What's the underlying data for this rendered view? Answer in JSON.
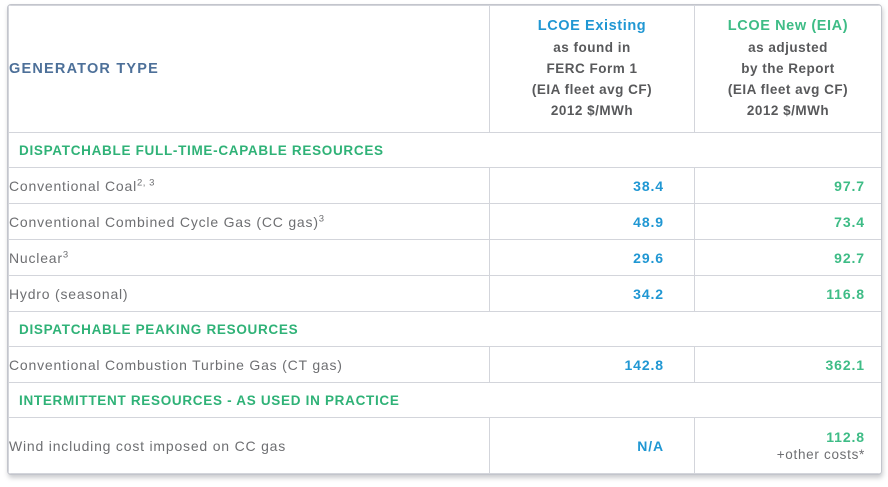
{
  "colors": {
    "blue_existing": "#2097d3",
    "green_new": "#3ebc86",
    "green_section": "#2fb277",
    "slate_header": "#4d7099",
    "body_text_gray": "#6e6f72",
    "border_gray": "#d3d5db"
  },
  "chart_data": {
    "type": "table",
    "header": {
      "generator_type_label": "GENERATOR TYPE",
      "col_existing": {
        "title": "LCOE Existing",
        "subtitle": "as found in\nFERC Form 1\n(EIA fleet avg CF)\n2012 $/MWh"
      },
      "col_new": {
        "title": "LCOE New (EIA)",
        "subtitle": "as adjusted\nby the Report\n(EIA fleet avg CF)\n2012 $/MWh"
      }
    },
    "sections": [
      {
        "header": "DISPATCHABLE FULL-TIME-CAPABLE RESOURCES",
        "rows": [
          {
            "label": "Conventional Coal",
            "footnote": "2, 3",
            "lcoe_existing": "38.4",
            "lcoe_new": "97.7",
            "lcoe_new_note": ""
          },
          {
            "label": "Conventional Combined Cycle Gas (CC gas)",
            "footnote": "3",
            "lcoe_existing": "48.9",
            "lcoe_new": "73.4",
            "lcoe_new_note": ""
          },
          {
            "label": "Nuclear",
            "footnote": "3",
            "lcoe_existing": "29.6",
            "lcoe_new": "92.7",
            "lcoe_new_note": ""
          },
          {
            "label": "Hydro (seasonal)",
            "footnote": "",
            "lcoe_existing": "34.2",
            "lcoe_new": "116.8",
            "lcoe_new_note": ""
          }
        ]
      },
      {
        "header": "DISPATCHABLE PEAKING RESOURCES",
        "rows": [
          {
            "label": "Conventional Combustion Turbine Gas (CT gas)",
            "footnote": "",
            "lcoe_existing": "142.8",
            "lcoe_new": "362.1",
            "lcoe_new_note": ""
          }
        ]
      },
      {
        "header": "INTERMITTENT RESOURCES - AS USED IN PRACTICE",
        "rows": [
          {
            "label": "Wind including cost imposed on CC gas",
            "footnote": "",
            "lcoe_existing": "N/A",
            "lcoe_new": "112.8",
            "lcoe_new_note": "+other costs*"
          }
        ]
      }
    ]
  }
}
